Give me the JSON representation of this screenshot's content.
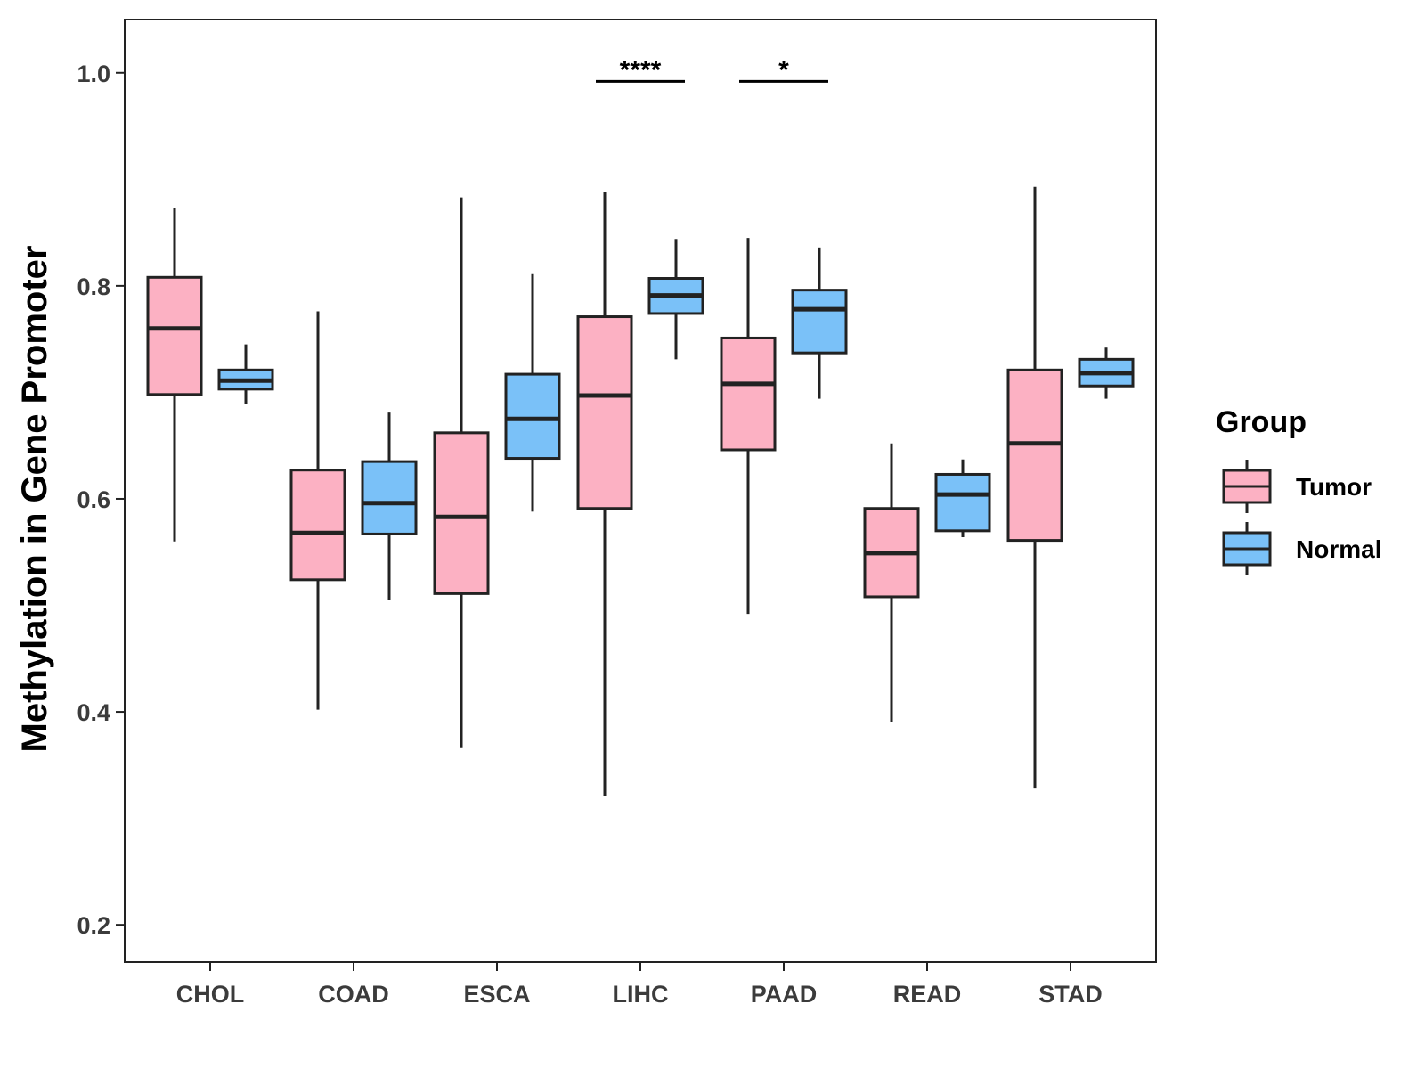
{
  "chart_data": {
    "type": "box",
    "title": "",
    "xlabel": "",
    "ylabel": "Methylation in Gene Promoter",
    "ylim": [
      0.165,
      1.05
    ],
    "yticks": [
      0.2,
      0.4,
      0.6,
      0.8,
      1.0
    ],
    "ytick_labels": [
      "0.2",
      "0.4",
      "0.6",
      "0.8",
      "1.0"
    ],
    "categories": [
      "CHOL",
      "COAD",
      "ESCA",
      "LIHC",
      "PAAD",
      "READ",
      "STAD"
    ],
    "legend": {
      "title": "Group",
      "position": "right",
      "entries": [
        {
          "name": "Tumor",
          "color": "#FCB1C3"
        },
        {
          "name": "Normal",
          "color": "#7AC1F8"
        }
      ]
    },
    "series": [
      {
        "name": "Tumor",
        "color": "#FCB1C3",
        "boxes": [
          {
            "min": 0.56,
            "q1": 0.698,
            "median": 0.76,
            "q3": 0.808,
            "max": 0.873
          },
          {
            "min": 0.402,
            "q1": 0.524,
            "median": 0.568,
            "q3": 0.627,
            "max": 0.776
          },
          {
            "min": 0.366,
            "q1": 0.511,
            "median": 0.583,
            "q3": 0.662,
            "max": 0.883
          },
          {
            "min": 0.321,
            "q1": 0.591,
            "median": 0.697,
            "q3": 0.771,
            "max": 0.888
          },
          {
            "min": 0.492,
            "q1": 0.646,
            "median": 0.708,
            "q3": 0.751,
            "max": 0.845
          },
          {
            "min": 0.39,
            "q1": 0.508,
            "median": 0.549,
            "q3": 0.591,
            "max": 0.652
          },
          {
            "min": 0.328,
            "q1": 0.561,
            "median": 0.652,
            "q3": 0.721,
            "max": 0.893
          }
        ]
      },
      {
        "name": "Normal",
        "color": "#7AC1F8",
        "boxes": [
          {
            "min": 0.689,
            "q1": 0.703,
            "median": 0.711,
            "q3": 0.721,
            "max": 0.745
          },
          {
            "min": 0.505,
            "q1": 0.567,
            "median": 0.596,
            "q3": 0.635,
            "max": 0.681
          },
          {
            "min": 0.588,
            "q1": 0.638,
            "median": 0.675,
            "q3": 0.717,
            "max": 0.811
          },
          {
            "min": 0.731,
            "q1": 0.774,
            "median": 0.791,
            "q3": 0.807,
            "max": 0.844
          },
          {
            "min": 0.694,
            "q1": 0.737,
            "median": 0.778,
            "q3": 0.796,
            "max": 0.836
          },
          {
            "min": 0.564,
            "q1": 0.57,
            "median": 0.604,
            "q3": 0.623,
            "max": 0.637
          },
          {
            "min": 0.694,
            "q1": 0.706,
            "median": 0.718,
            "q3": 0.731,
            "max": 0.742
          }
        ]
      }
    ],
    "annotations": [
      {
        "category": "LIHC",
        "text": "****",
        "y": 0.992
      },
      {
        "category": "PAAD",
        "text": "*",
        "y": 0.992
      }
    ]
  }
}
